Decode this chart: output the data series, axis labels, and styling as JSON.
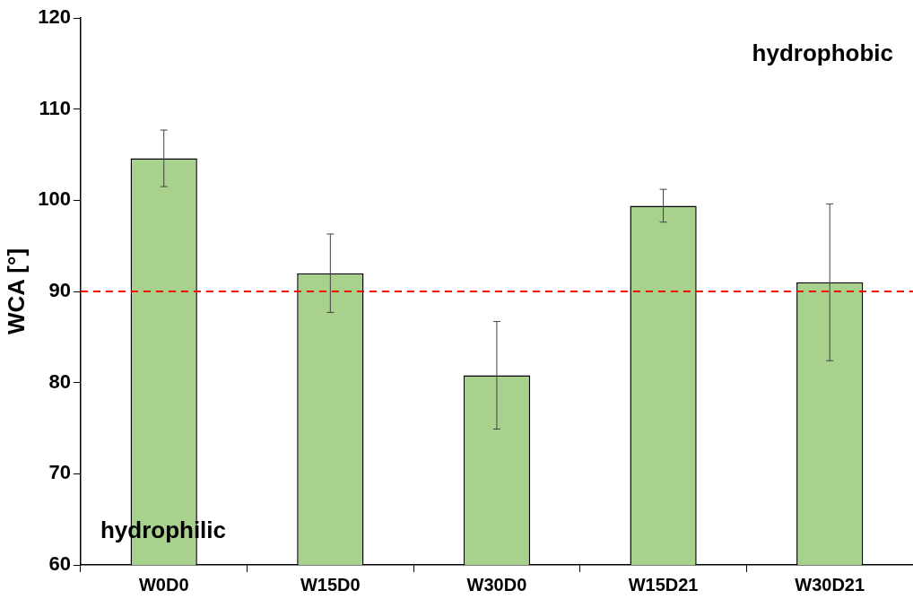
{
  "chart_data": {
    "type": "bar",
    "ylabel": "WCA [°]",
    "categories": [
      "W0D0",
      "W15D0",
      "W30D0",
      "W15D21",
      "W30D21"
    ],
    "values": [
      104.6,
      92.0,
      80.8,
      99.4,
      91.0
    ],
    "errors": [
      3.1,
      4.3,
      5.9,
      1.8,
      8.6
    ],
    "color": "#a9d18e",
    "ylim": [
      60,
      120
    ],
    "yticks": [
      60,
      70,
      80,
      90,
      100,
      110,
      120
    ],
    "grid": false,
    "legend": false,
    "ref_lines": [
      {
        "axis": "y",
        "value": 90,
        "color": "#ff0000",
        "line_style": "dashed"
      }
    ],
    "annotations": [
      "hydrophobic",
      "hydrophilic"
    ]
  }
}
